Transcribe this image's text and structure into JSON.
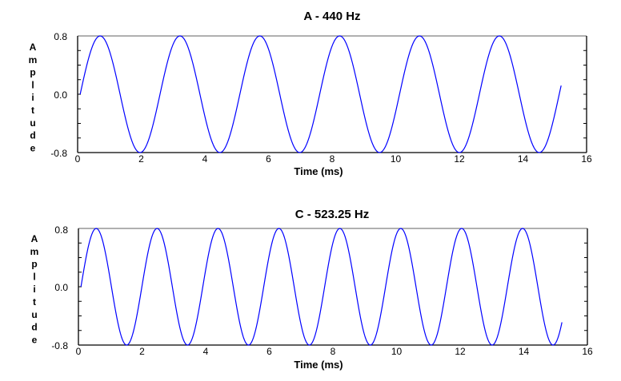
{
  "chart_data": [
    {
      "type": "line",
      "title": "A - 440 Hz",
      "xlabel": "Time (ms)",
      "ylabel": "Amplitude",
      "xlim": [
        0,
        16
      ],
      "ylim": [
        -0.8,
        0.8
      ],
      "xticks": [
        "0",
        "2",
        "4",
        "6",
        "8",
        "10",
        "12",
        "14",
        "16"
      ],
      "yticks": [
        "0.8",
        "0.0",
        "-0.8"
      ],
      "grid": false,
      "series": [
        {
          "name": "A 440 Hz",
          "color": "#0000ff",
          "amplitude": 0.8,
          "start_ms": 0.08,
          "end_ms": 15.2,
          "visual_period_ms": 2.51,
          "peaks_ms": [
            0.75,
            3.25,
            5.8,
            8.3,
            10.8,
            13.3
          ],
          "troughs_ms": [
            2.0,
            4.55,
            7.0,
            9.55,
            12.05,
            14.55
          ]
        }
      ]
    },
    {
      "type": "line",
      "title": "C - 523.25 Hz",
      "xlabel": "Time (ms)",
      "ylabel": "Amplitude",
      "xlim": [
        0,
        16
      ],
      "ylim": [
        -0.8,
        0.8
      ],
      "xticks": [
        "0",
        "2",
        "4",
        "6",
        "8",
        "10",
        "12",
        "14",
        "16"
      ],
      "yticks": [
        "0.8",
        "0.0",
        "-0.8"
      ],
      "grid": false,
      "series": [
        {
          "name": "C 523.25 Hz",
          "color": "#0000ff",
          "amplitude": 0.8,
          "start_ms": 0.08,
          "end_ms": 15.2,
          "visual_period_ms": 1.915,
          "peaks_ms": [
            0.6,
            2.5,
            4.45,
            6.4,
            8.3,
            10.2,
            12.15,
            14.05
          ],
          "troughs_ms": [
            1.55,
            3.45,
            5.4,
            7.35,
            9.3,
            11.2,
            13.1,
            15.0
          ]
        }
      ]
    }
  ]
}
